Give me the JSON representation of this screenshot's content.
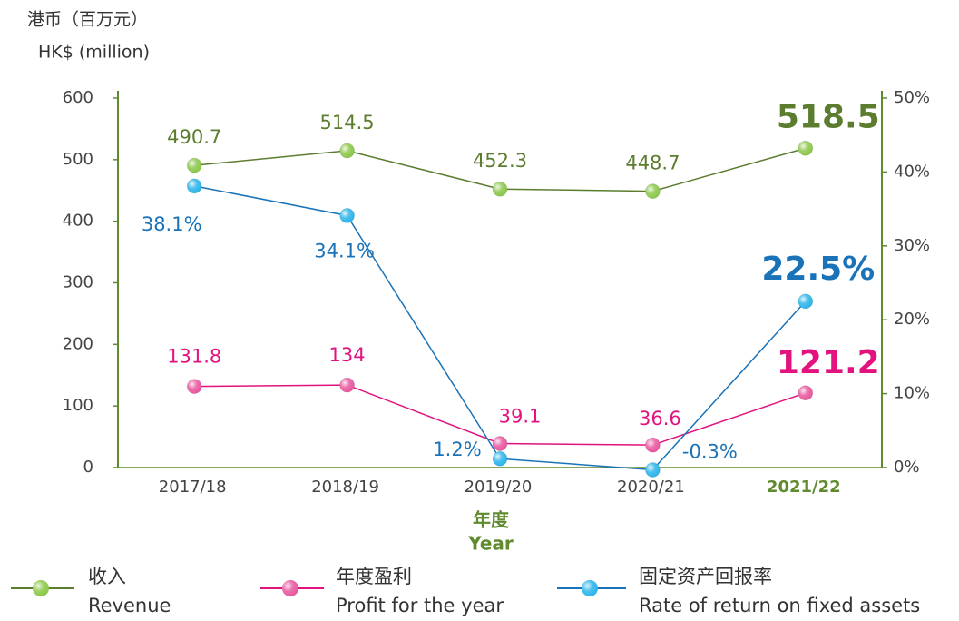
{
  "chart_data": {
    "type": "line",
    "y_axis_label": "港币（百万元）",
    "y_axis_label_en": "HK$ (million)",
    "x_axis_label": "年度",
    "x_axis_label_en": "Year",
    "categories": [
      "2017/18",
      "2018/19",
      "2019/20",
      "2020/21",
      "2021/22"
    ],
    "ylim": [
      0,
      600
    ],
    "yticks": [
      0,
      100,
      200,
      300,
      400,
      500,
      600
    ],
    "y2lim": [
      0,
      50
    ],
    "y2ticks": [
      {
        "value": 0,
        "label": "0%"
      },
      {
        "value": 10,
        "label": "10%"
      },
      {
        "value": 20,
        "label": "20%"
      },
      {
        "value": 30,
        "label": "30%"
      },
      {
        "value": 40,
        "label": "40%"
      },
      {
        "value": 50,
        "label": "50%"
      }
    ],
    "axis_color": "#5f8a2e",
    "series": [
      {
        "name": "收入",
        "name_en": "Revenue",
        "color": "#5c7d2f",
        "marker_color": "#8cc84b",
        "values": [
          490.7,
          514.5,
          452.3,
          448.7,
          518.5
        ]
      },
      {
        "name": "年度盈利",
        "name_en": "Profit for the year",
        "color": "#e2137f",
        "marker_color": "#e8589f",
        "values": [
          131.8,
          134,
          39.1,
          36.6,
          121.2
        ]
      },
      {
        "name": "固定资产回报率",
        "name_en": "Rate of return on fixed assets",
        "color": "#1a73b8",
        "marker_color": "#2db5ea",
        "axis": "y2",
        "values": [
          38.1,
          34.1,
          1.2,
          -0.3,
          22.5
        ],
        "value_labels": [
          "38.1%",
          "34.1%",
          "1.2%",
          "-0.3%",
          "22.5%"
        ]
      }
    ]
  }
}
